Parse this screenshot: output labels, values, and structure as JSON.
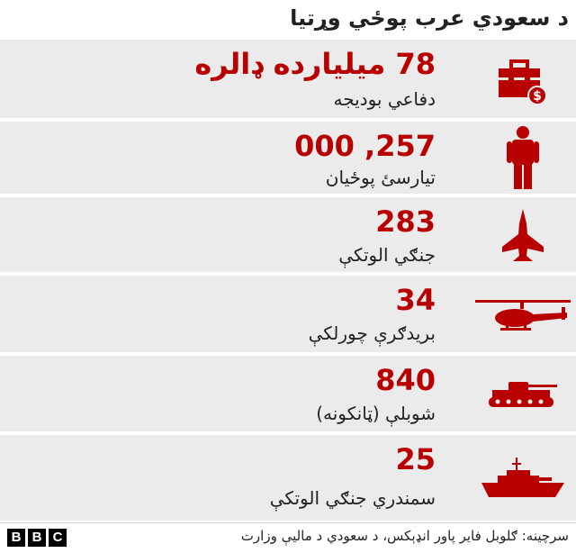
{
  "title": "د سعودي عرب پوځي وړتیا",
  "rows": [
    {
      "value": "78 میلیارده ډالره",
      "label": "دفاعي بودیجه",
      "icon": "budget-icon"
    },
    {
      "value": "257, 000",
      "label": "تیارسئ پوځیان",
      "icon": "soldier-icon"
    },
    {
      "value": "283",
      "label": "جنګي الوتکې",
      "icon": "fighter-jet-icon"
    },
    {
      "value": "34",
      "label": "بریدګرې چورلکې",
      "icon": "helicopter-icon"
    },
    {
      "value": "840",
      "label": "شوبلې (ټانکونه)",
      "icon": "tank-icon"
    },
    {
      "value": "25",
      "label": "سمندري جنګي الوتکې",
      "icon": "warship-icon"
    }
  ],
  "footer": {
    "source": "سرچینه: ګلوبل فایر پاور انډېکس، د سعودي د مالیې وزارت",
    "logo": [
      "B",
      "B",
      "C"
    ]
  },
  "colors": {
    "accent": "#b80000",
    "row_bg": "#ebebeb"
  }
}
